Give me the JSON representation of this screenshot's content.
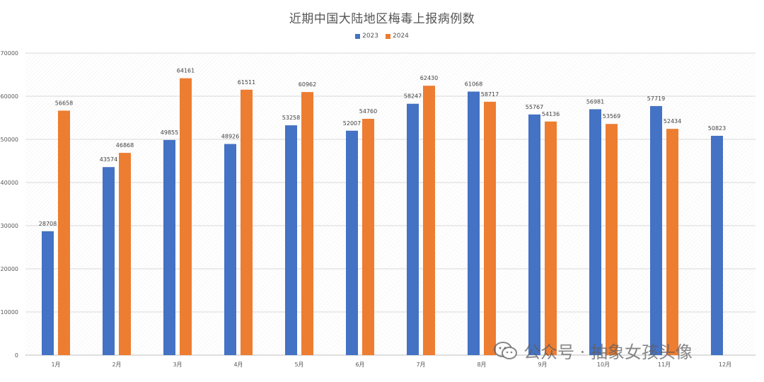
{
  "chart_data": {
    "type": "bar",
    "title": "近期中国大陆地区梅毒上报病例数",
    "xlabel": "",
    "ylabel": "",
    "categories": [
      "1月",
      "2月",
      "3月",
      "4月",
      "5月",
      "6月",
      "7月",
      "8月",
      "9月",
      "10月",
      "11月",
      "12月"
    ],
    "series": [
      {
        "name": "2023",
        "color": "#4472C4",
        "values": [
          28708,
          43574,
          49855,
          48926,
          53258,
          52007,
          58247,
          61068,
          55767,
          56981,
          57719,
          50823
        ]
      },
      {
        "name": "2024",
        "color": "#ED7D31",
        "values": [
          56658,
          46868,
          64161,
          61511,
          60962,
          54760,
          62430,
          58717,
          54136,
          53569,
          52434,
          null
        ]
      }
    ],
    "ylim": [
      0,
      70000
    ],
    "yticks": [
      0,
      10000,
      20000,
      30000,
      40000,
      50000,
      60000,
      70000
    ],
    "legend_position": "top-center",
    "grid": true
  },
  "watermark": {
    "icon": "wechat-icon",
    "text": "公众号 · 抽象女孩头像"
  }
}
